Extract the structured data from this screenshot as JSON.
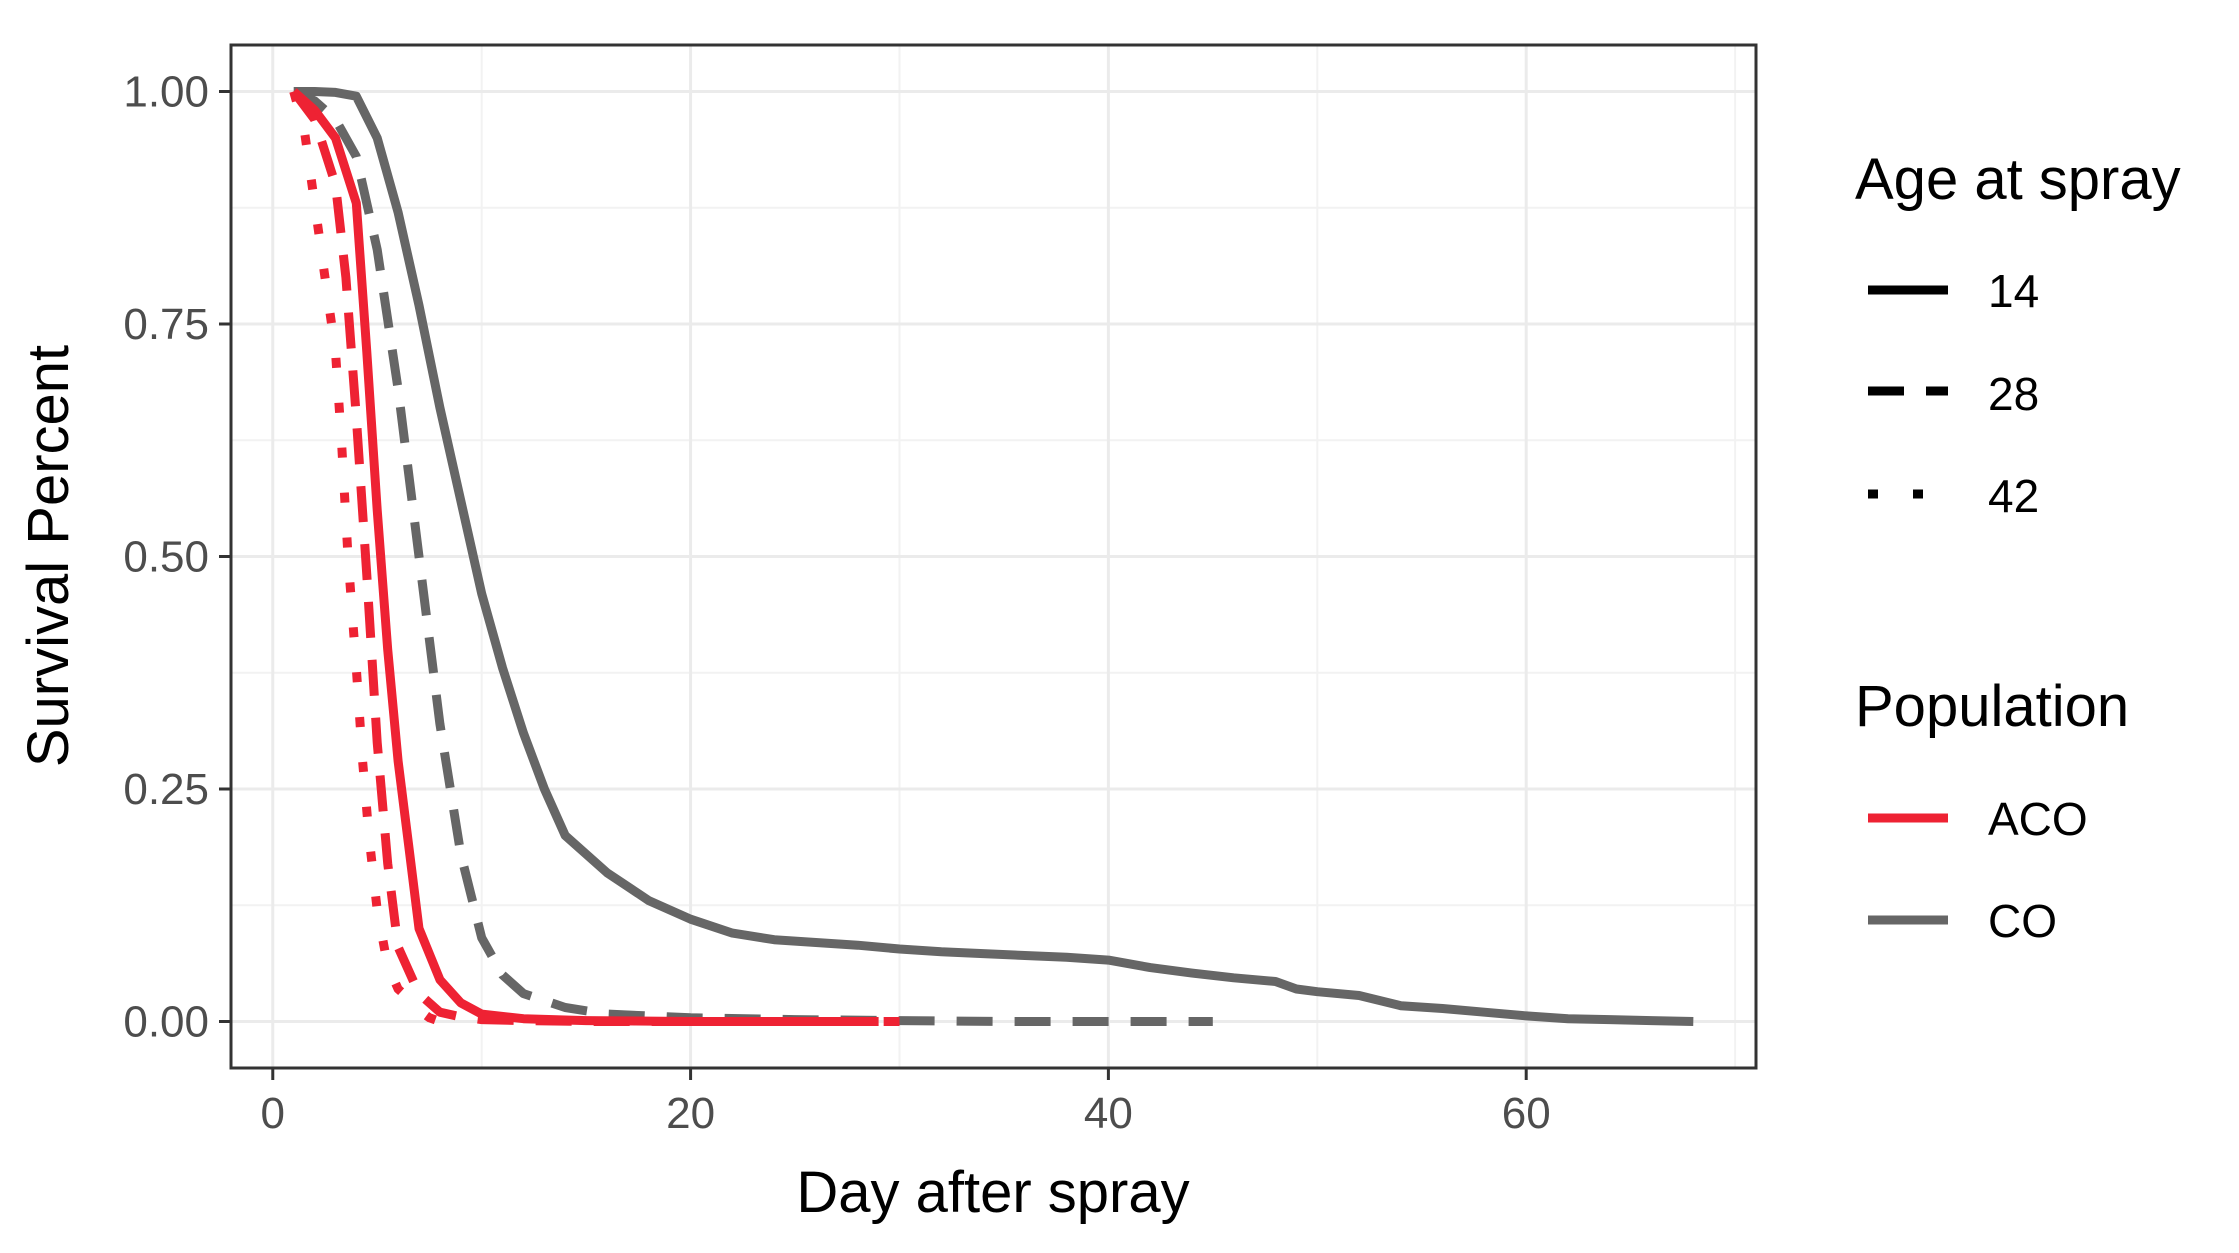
{
  "chart_data": {
    "type": "line",
    "title": "",
    "xlabel": "Day after spray",
    "ylabel": "Survival Percent",
    "xlim": [
      -2,
      71
    ],
    "ylim": [
      -0.05,
      1.05
    ],
    "xticks": [
      0,
      20,
      40,
      60
    ],
    "xtick_labels": [
      "0",
      "20",
      "40",
      "60"
    ],
    "yticks": [
      0,
      0.25,
      0.5,
      0.75,
      1
    ],
    "ytick_labels": [
      "0.00",
      "0.25",
      "0.50",
      "0.75",
      "1.00"
    ],
    "grid": true,
    "legend_position": "right",
    "legends": [
      {
        "title": "Age at spray",
        "entries": [
          {
            "label": "14",
            "linetype": "solid"
          },
          {
            "label": "28",
            "linetype": "dashed"
          },
          {
            "label": "42",
            "linetype": "dotted"
          }
        ]
      },
      {
        "title": "Population",
        "entries": [
          {
            "label": "ACO",
            "color": "#ee2233"
          },
          {
            "label": "CO",
            "color": "#666666"
          }
        ]
      }
    ],
    "series": [
      {
        "population": "CO",
        "age": "14",
        "x": [
          1,
          2,
          3,
          4,
          5,
          6,
          7,
          8,
          9,
          10,
          11,
          12,
          13,
          14,
          16,
          18,
          20,
          22,
          24,
          26,
          28,
          30,
          32,
          34,
          36,
          38,
          40,
          42,
          44,
          46,
          48,
          49,
          50,
          52,
          54,
          56,
          58,
          60,
          62,
          64,
          66,
          68
        ],
        "y": [
          1.0,
          1.0,
          0.999,
          0.995,
          0.95,
          0.87,
          0.77,
          0.66,
          0.56,
          0.46,
          0.38,
          0.31,
          0.25,
          0.2,
          0.16,
          0.13,
          0.11,
          0.095,
          0.088,
          0.085,
          0.082,
          0.078,
          0.075,
          0.073,
          0.071,
          0.069,
          0.066,
          0.058,
          0.052,
          0.047,
          0.043,
          0.035,
          0.032,
          0.028,
          0.017,
          0.014,
          0.01,
          0.006,
          0.003,
          0.002,
          0.001,
          0.0
        ]
      },
      {
        "population": "CO",
        "age": "28",
        "x": [
          1,
          2,
          3,
          4,
          5,
          6,
          7,
          8,
          9,
          10,
          11,
          12,
          14,
          16,
          20,
          25,
          30,
          35,
          40,
          45
        ],
        "y": [
          1.0,
          0.99,
          0.97,
          0.93,
          0.83,
          0.68,
          0.5,
          0.32,
          0.18,
          0.09,
          0.05,
          0.03,
          0.015,
          0.008,
          0.004,
          0.002,
          0.001,
          0.0,
          0.0,
          0.0
        ]
      },
      {
        "population": "ACO",
        "age": "14",
        "x": [
          1,
          2,
          3,
          4,
          4.5,
          5,
          5.5,
          6,
          6.5,
          7,
          8,
          9,
          10,
          12,
          15,
          20,
          25,
          29
        ],
        "y": [
          1.0,
          0.98,
          0.95,
          0.88,
          0.72,
          0.55,
          0.4,
          0.28,
          0.19,
          0.1,
          0.045,
          0.02,
          0.008,
          0.003,
          0.001,
          0.0,
          0.0,
          0.0
        ]
      },
      {
        "population": "ACO",
        "age": "28",
        "x": [
          1,
          2,
          3,
          3.5,
          4,
          4.5,
          5,
          5.5,
          6,
          7,
          8,
          9,
          10,
          12,
          15,
          20,
          25,
          30
        ],
        "y": [
          1.0,
          0.97,
          0.9,
          0.8,
          0.65,
          0.48,
          0.3,
          0.17,
          0.08,
          0.03,
          0.01,
          0.005,
          0.002,
          0.001,
          0.0,
          0.0,
          0.0,
          0.0
        ]
      },
      {
        "population": "ACO",
        "age": "42",
        "x": [
          1,
          1.5,
          2,
          2.5,
          3,
          3.3,
          3.6,
          4,
          4.3,
          4.6,
          5,
          5.5,
          6,
          6.5,
          7,
          7.5,
          8
        ],
        "y": [
          1.0,
          0.96,
          0.88,
          0.8,
          0.72,
          0.62,
          0.5,
          0.38,
          0.28,
          0.2,
          0.12,
          0.06,
          0.035,
          0.025,
          0.012,
          0.004,
          0.0
        ]
      }
    ]
  }
}
